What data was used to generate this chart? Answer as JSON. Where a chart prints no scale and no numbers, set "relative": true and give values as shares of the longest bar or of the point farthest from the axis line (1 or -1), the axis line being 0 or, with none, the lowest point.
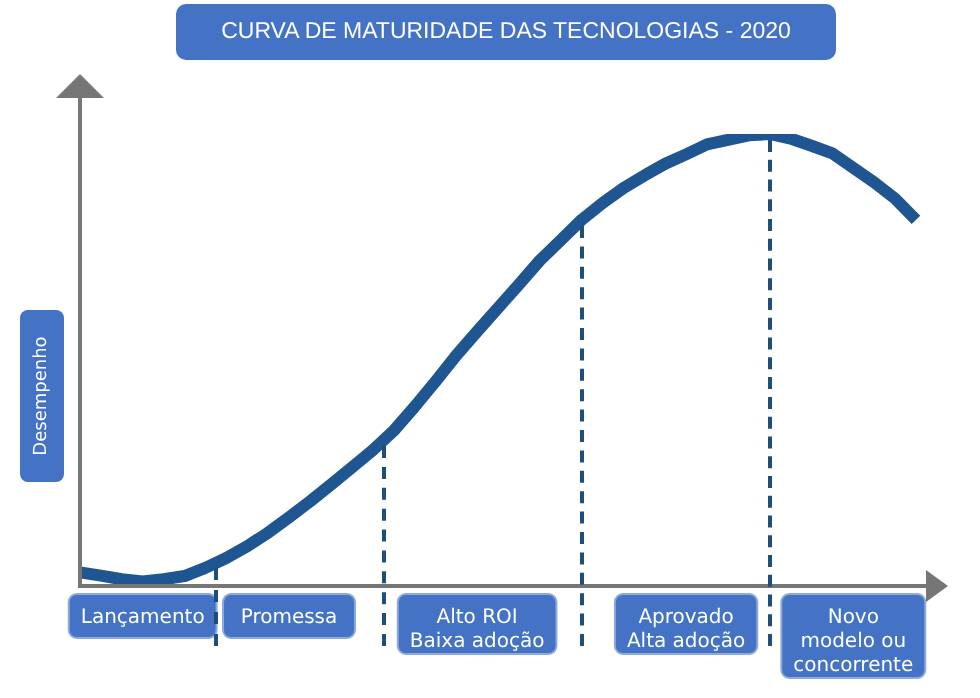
{
  "chart_data": {
    "type": "line",
    "title": "CURVA DE MATURIDADE DAS TECNOLOGIAS - 2020",
    "ylabel": "Desempenho",
    "relative": true,
    "tick_labels": "x",
    "legend": false,
    "marker": "none",
    "line_style": "solid",
    "categories": [
      null,
      null,
      null,
      "Lançamento",
      null,
      null,
      null,
      null,
      null,
      null,
      "Promessa",
      null,
      null,
      null,
      null,
      null,
      null,
      null,
      null,
      "Alto ROI\nBaixa adoção",
      null,
      null,
      null,
      null,
      null,
      null,
      null,
      null,
      null,
      "Aprovado\nAlta adoção",
      null,
      null,
      null,
      null,
      null,
      null,
      null,
      "Novo\nmodelo ou\nconcorrente",
      null,
      null,
      null
    ],
    "series": [
      {
        "color": "#1f5591",
        "values": [
          0.03,
          0.023,
          0.015,
          0.01,
          0.015,
          0.022,
          0.04,
          0.062,
          0.088,
          0.118,
          0.152,
          0.187,
          0.224,
          0.262,
          0.3,
          0.343,
          0.396,
          0.452,
          0.51,
          0.563,
          0.615,
          0.667,
          0.72,
          0.765,
          0.81,
          0.847,
          0.88,
          0.908,
          0.934,
          0.955,
          0.977,
          0.987,
          0.997,
          1,
          0.99,
          0.974,
          0.957,
          0.925,
          0.893,
          0.857,
          0.81
        ]
      }
    ]
  }
}
